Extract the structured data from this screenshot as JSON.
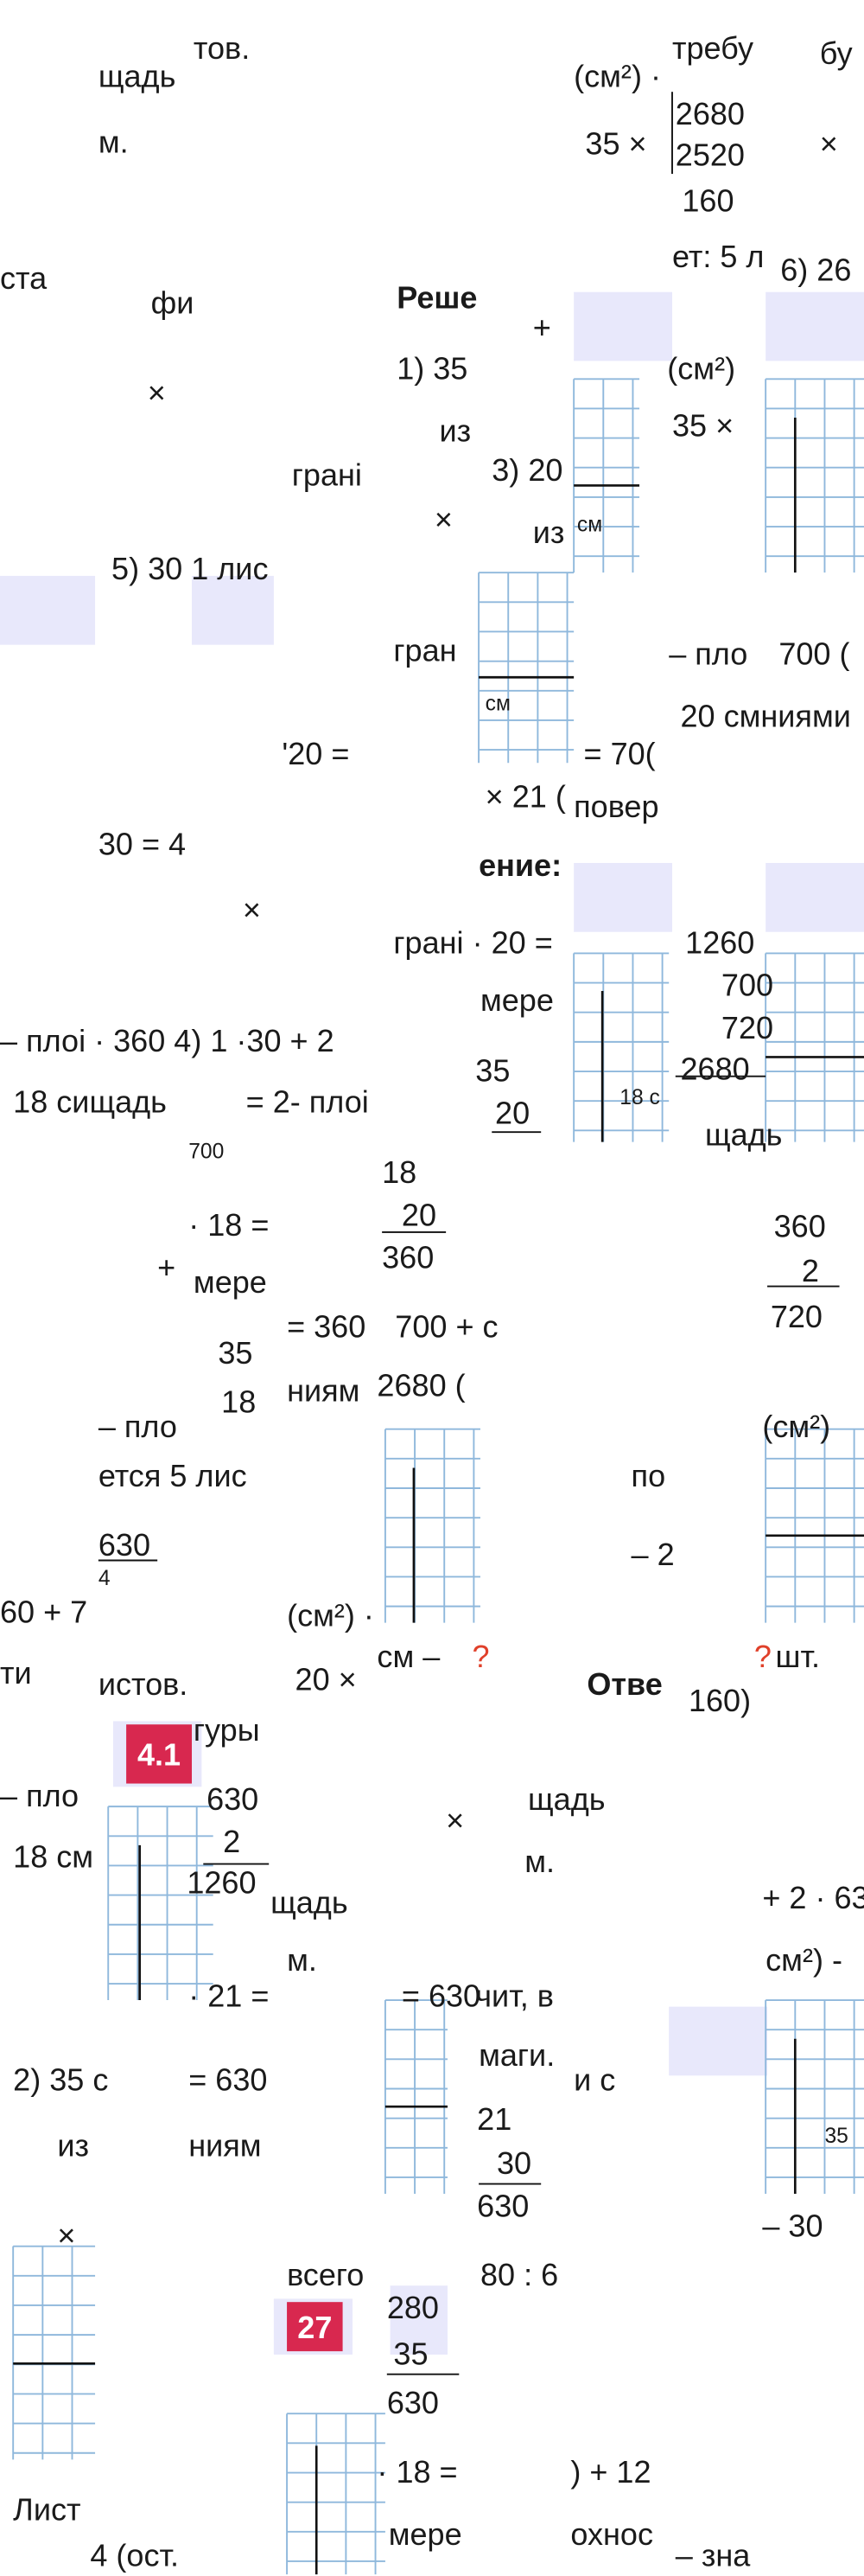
{
  "fragments": [
    "тов.",
    "щадь",
    "м.",
    "(см²) ·",
    "требу",
    "бу",
    "2680",
    "2520",
    "160",
    "35 ×",
    "×",
    "ет: 5 л",
    "6) 26",
    "ста",
    "фи",
    "Реше",
    "+",
    "1) 35",
    "(см²)",
    "35 ×",
    "×",
    "из",
    "грані",
    "3) 20",
    "×",
    "из",
    "см",
    "5) 30 1 лис",
    "гран",
    "– пло",
    "700 (",
    "см",
    "20 смниями",
    "'20 =",
    "= 70(",
    "× 21 (",
    "повер",
    "30 = 4",
    "ение:",
    "×",
    "грані · 20 =",
    "1260",
    "700",
    "720",
    "2680",
    "мере",
    "– плоі · 360 4) 1 ·30 + 2",
    "35",
    "20",
    "18 сищадь",
    "= 2- плоі",
    "18 с",
    "щадь",
    "700",
    "18",
    "20",
    "360",
    "360",
    "2",
    "720",
    "· 18 =",
    "+",
    "мере",
    "= 360",
    "700 + с",
    "35",
    "18",
    "ниям",
    "2680 (",
    "– пло",
    "(см²)",
    "ется 5 лис",
    "по",
    "630",
    "4",
    "– 2",
    "60 + 7",
    "(см²) ·",
    "ти",
    "истов.",
    "20 ×",
    "см –",
    "?",
    "?",
    "шт.",
    "Отве",
    "160)",
    "гуры",
    "– пло",
    "630",
    "щадь",
    "×",
    "18 см",
    "2",
    "м.",
    "1260",
    "щадь",
    "+ 2 · 63",
    "см²) -",
    "м.",
    "· 21 =",
    "= 630",
    "чит, в",
    "2) 35 с",
    "= 630",
    "маги.",
    "и с",
    "21",
    "30",
    "630",
    "из",
    "ниям",
    "35",
    "– 30",
    "×",
    "всего",
    "80 : 6",
    "280",
    "35",
    "630",
    "· 18 =",
    ") + 12",
    "Лист",
    "мере",
    "охнос",
    "4 (ост.",
    "– зна"
  ],
  "badges": [
    "4.1",
    "27"
  ]
}
